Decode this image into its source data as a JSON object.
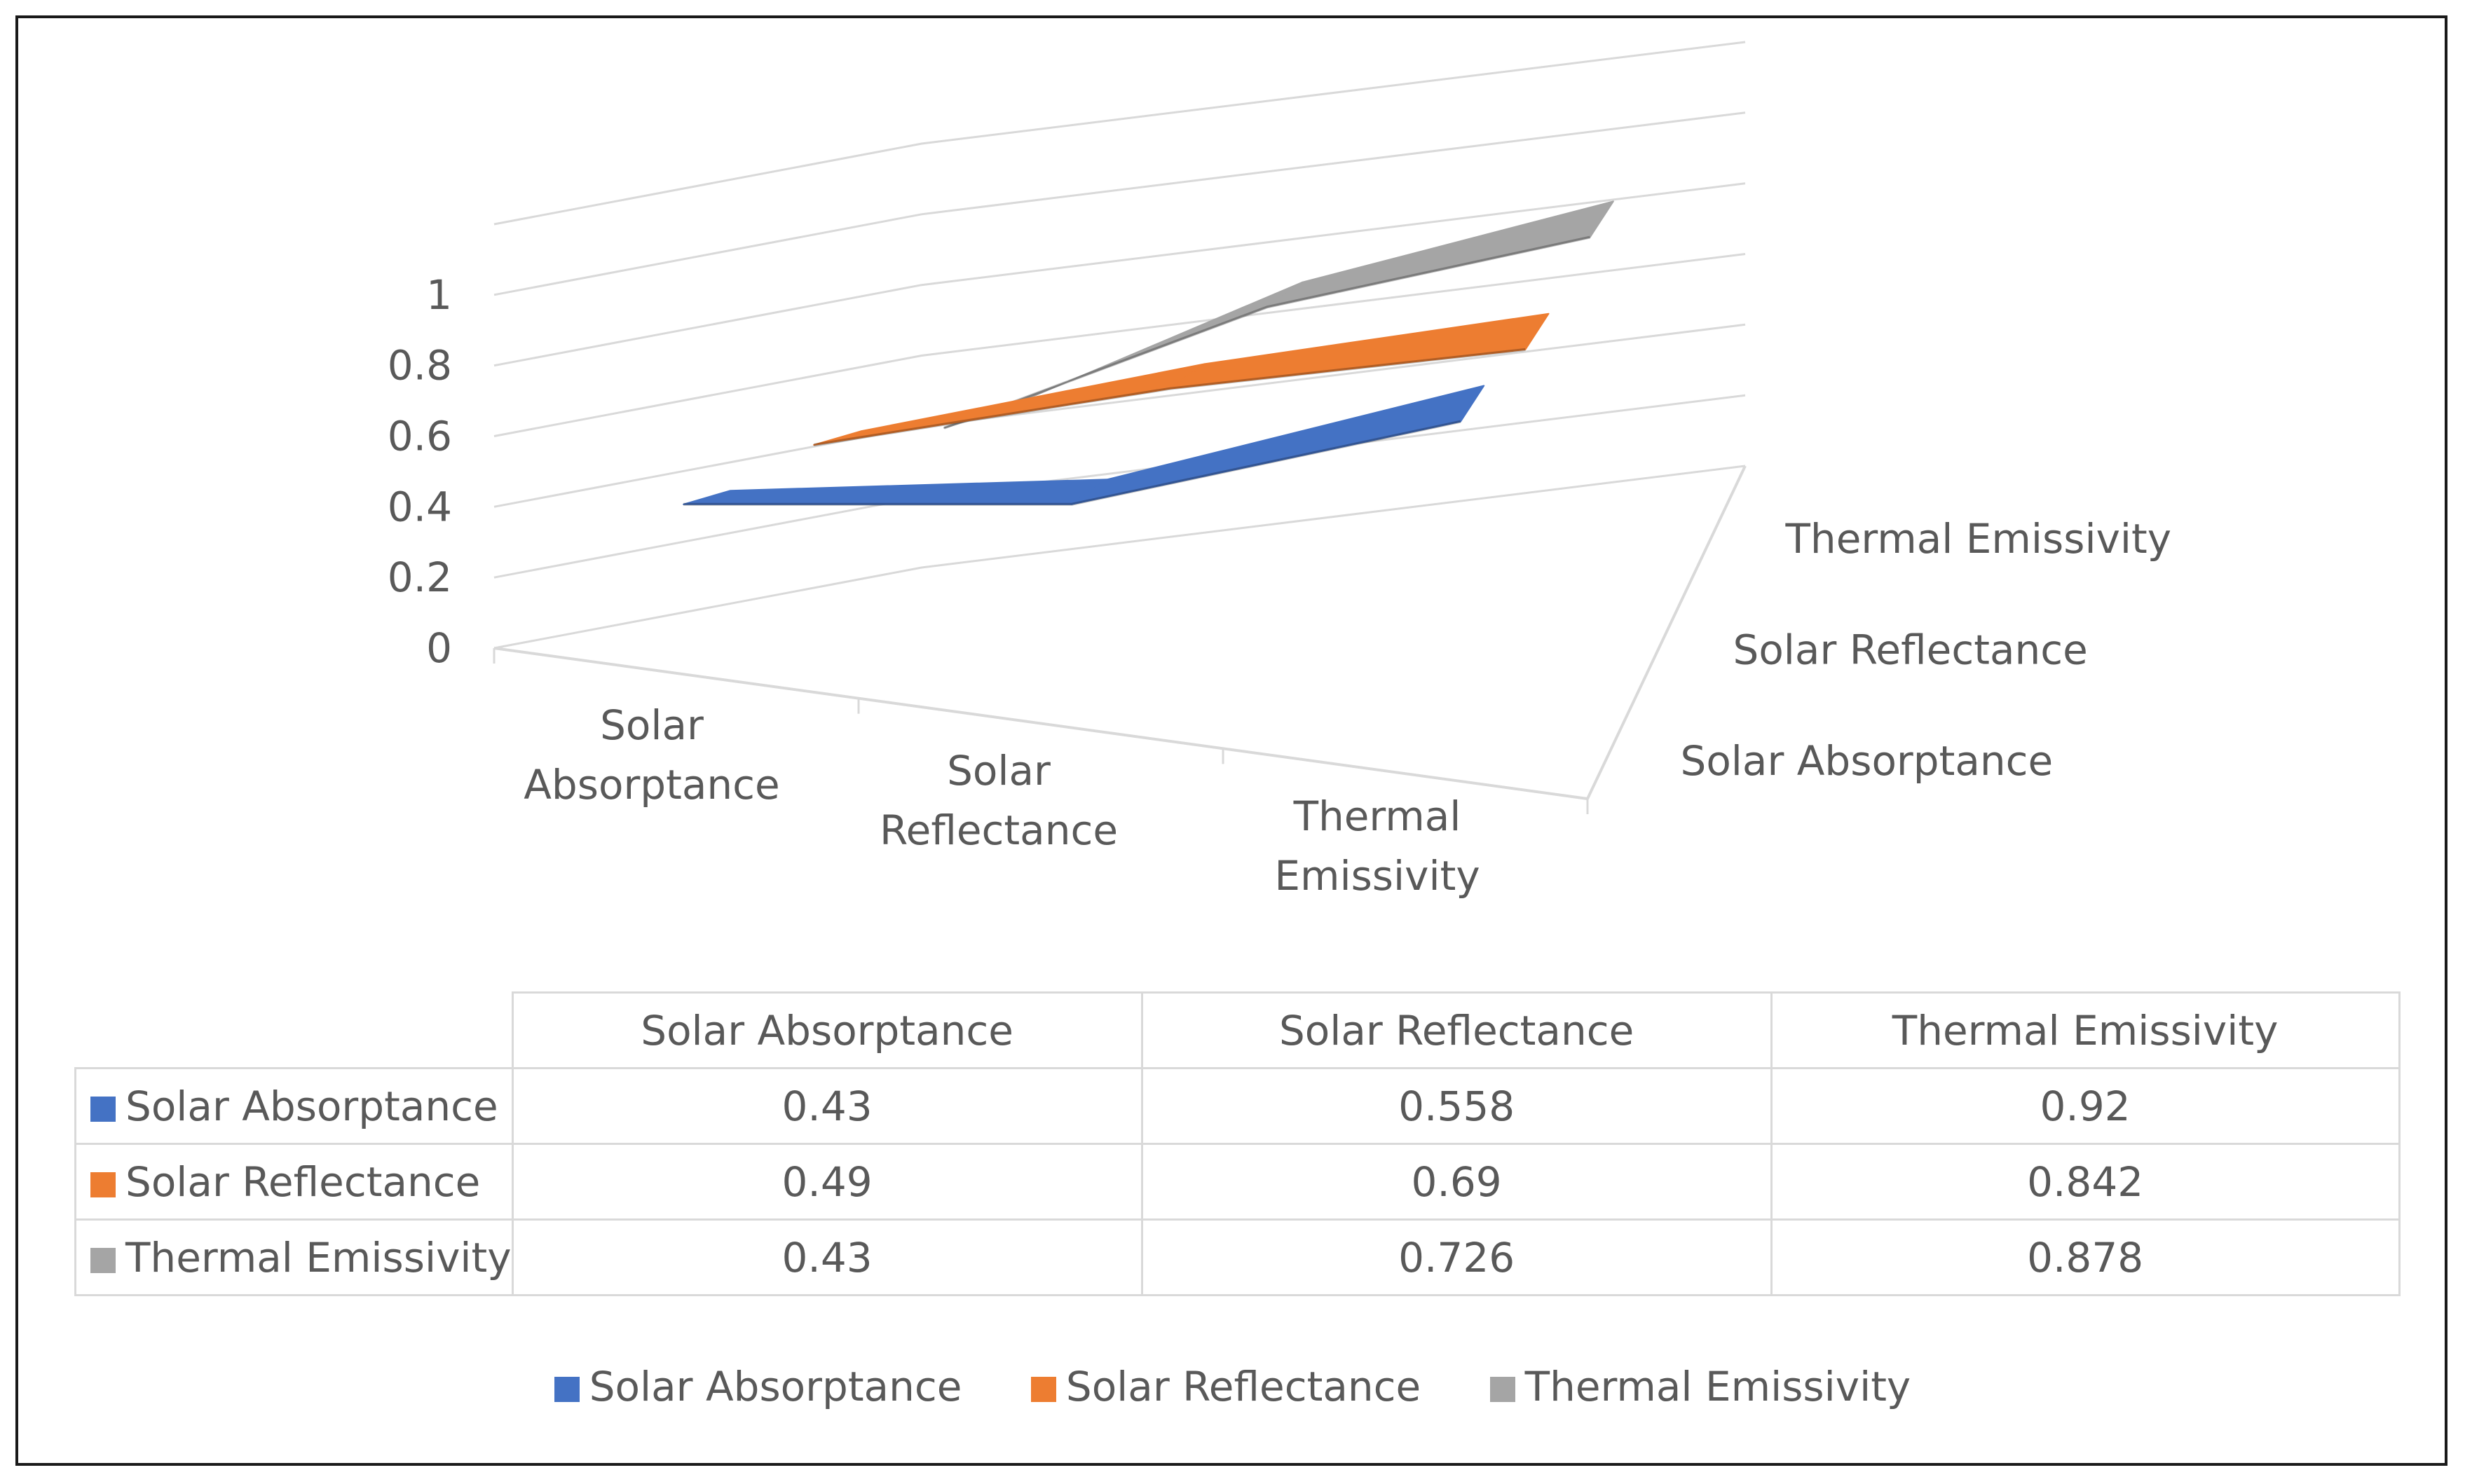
{
  "chart_data": {
    "type": "line",
    "subtype": "3d-line",
    "title": "",
    "categories": [
      "Solar Absorptance",
      "Solar Reflectance",
      "Thermal Emissivity"
    ],
    "category_labels": [
      [
        "Solar",
        "Absorptance"
      ],
      [
        "Solar",
        "Reflectance"
      ],
      [
        "Thermal",
        "Emissivity"
      ]
    ],
    "series": [
      {
        "name": "Solar Absorptance",
        "values": [
          0.43,
          0.558,
          0.92
        ],
        "display": [
          "0.43",
          "0.558",
          "0.92"
        ],
        "color": "#4472C4"
      },
      {
        "name": "Solar Reflectance",
        "values": [
          0.49,
          0.69,
          0.842
        ],
        "display": [
          "0.49",
          "0.69",
          "0.842"
        ],
        "color": "#ED7D31"
      },
      {
        "name": "Thermal Emissivity",
        "values": [
          0.43,
          0.726,
          0.878
        ],
        "display": [
          "0.43",
          "0.726",
          "0.878"
        ],
        "color": "#A5A5A5"
      }
    ],
    "y_ticks": [
      "0",
      "0.2",
      "0.4",
      "0.6",
      "0.8",
      "1"
    ],
    "ylim": [
      0,
      1.2
    ],
    "depth_labels": [
      "Solar Absorptance",
      "Solar Reflectance",
      "Thermal Emissivity"
    ],
    "gridlines": true,
    "legend_position": "bottom",
    "data_table": true
  },
  "table": {
    "header": [
      "Solar Absorptance",
      "Solar Reflectance",
      "Thermal Emissivity"
    ]
  }
}
